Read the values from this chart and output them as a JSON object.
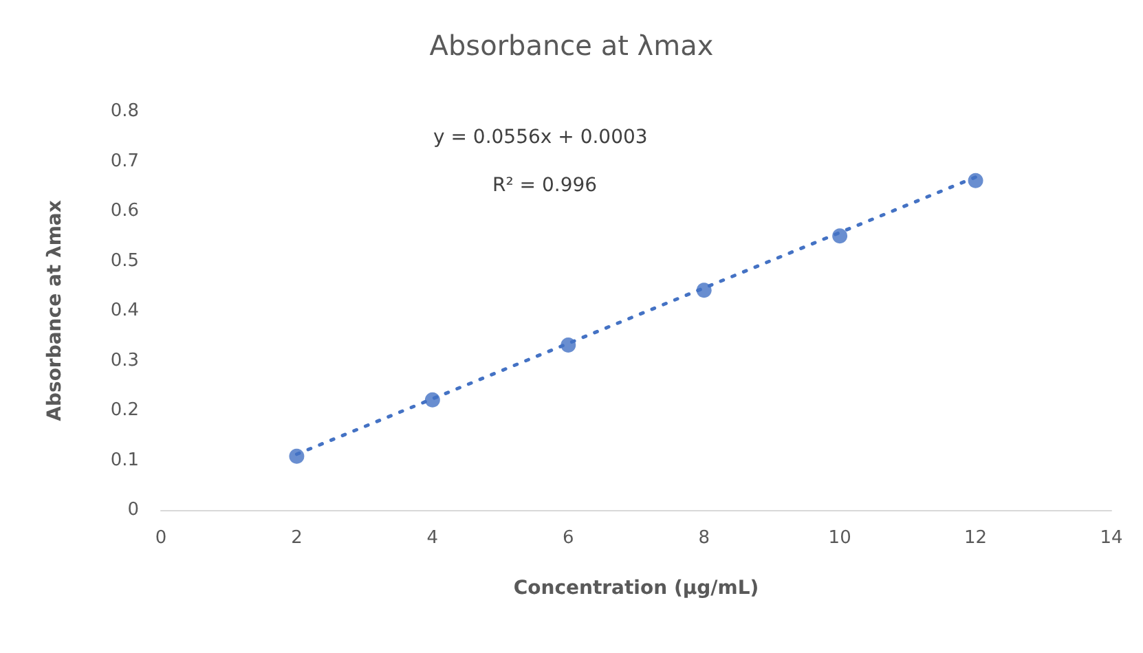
{
  "chart_data": {
    "type": "scatter",
    "title": "Absorbance at λmax",
    "xlabel": "Concentration (µg/mL)",
    "ylabel": "Absorbance at λmax",
    "x": [
      2,
      4,
      6,
      8,
      10,
      12
    ],
    "series": [
      {
        "type": "scatter",
        "color": "#4472c4",
        "marker": "circle",
        "values": [
          0.108,
          0.221,
          0.331,
          0.441,
          0.55,
          0.661
        ]
      },
      {
        "type": "line",
        "color": "#4472c4",
        "marker": "none",
        "line_style": "dotted",
        "x": [
          2,
          12
        ],
        "values": [
          0.112,
          0.668
        ]
      }
    ],
    "annotations": [
      "y = 0.0556x + 0.0003",
      "R² = 0.996"
    ],
    "xlim": [
      0,
      14
    ],
    "xticks": [
      0,
      2,
      4,
      6,
      8,
      10,
      12,
      14
    ],
    "ylim": [
      0,
      0.8
    ],
    "yticks": [
      0,
      0.1,
      0.2,
      0.3,
      0.4,
      0.5,
      0.6,
      0.7,
      0.8
    ],
    "grid": false
  }
}
